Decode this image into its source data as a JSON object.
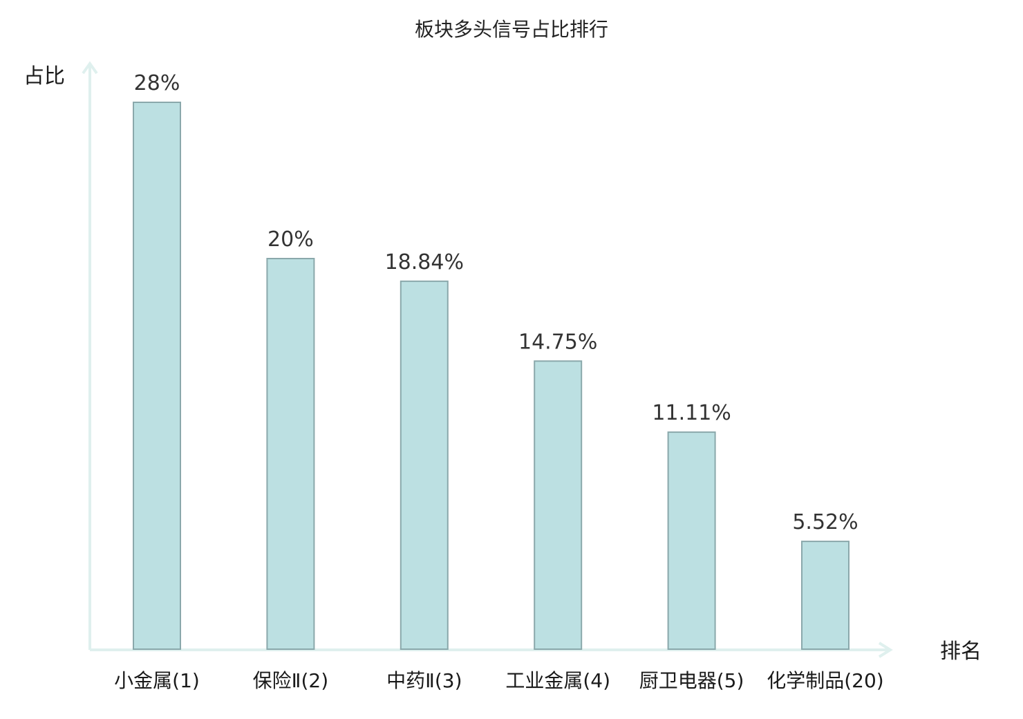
{
  "chart_data": {
    "type": "bar",
    "title": "板块多头信号占比排行",
    "ylabel": "占比",
    "xlabel": "排名",
    "categories": [
      "小金属(1)",
      "保险Ⅱ(2)",
      "中药Ⅱ(3)",
      "工业金属(4)",
      "厨卫电器(5)",
      "化学制品(20)"
    ],
    "values": [
      28,
      20,
      18.84,
      14.75,
      11.11,
      5.52
    ],
    "value_labels": [
      "28%",
      "20%",
      "18.84%",
      "14.75%",
      "11.11%",
      "5.52%"
    ],
    "highlight_index": 5,
    "ylim": [
      0,
      28
    ],
    "grid": false,
    "colors": {
      "bar_fill": "#bce0e2",
      "bar_stroke": "#8aa8ab",
      "axis": "#dff0ee",
      "highlight_label": "#e01818",
      "label": "#1a1a1a"
    }
  }
}
